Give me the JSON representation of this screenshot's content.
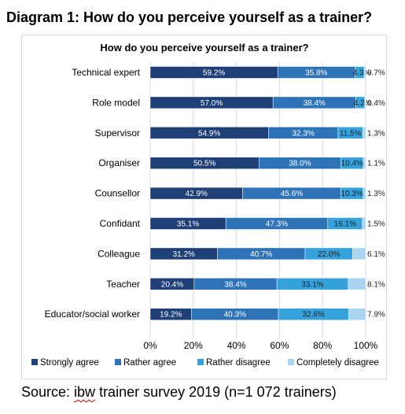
{
  "document_title": "Diagram 1: How do you perceive yourself as a trainer?",
  "source": {
    "prefix": "Source: ",
    "flagged_word": "ibw",
    "rest": " trainer survey 2019 (n=1 072 trainers)"
  },
  "chart_data": {
    "type": "bar",
    "orientation": "horizontal",
    "stacked": true,
    "title": "How do you perceive yourself as a trainer?",
    "categories": [
      "Technical expert",
      "Role model",
      "Supervisor",
      "Organiser",
      "Counsellor",
      "Confidant",
      "Colleague",
      "Teacher",
      "Educator/social worker"
    ],
    "series": [
      {
        "name": "Strongly agree",
        "color": "#1f3f77",
        "label_color": "#ffffff",
        "values": [
          59.2,
          57.0,
          54.9,
          50.5,
          42.9,
          35.1,
          31.2,
          20.4,
          19.2
        ],
        "labels": [
          "59.2%",
          "57.0%",
          "54.9%",
          "50.5%",
          "42.9%",
          "35.1%",
          "31.2%",
          "20.4%",
          "19.2%"
        ]
      },
      {
        "name": "Rather agree",
        "color": "#2e73b8",
        "label_color": "#ffffff",
        "values": [
          35.8,
          38.4,
          32.3,
          38.0,
          45.6,
          47.3,
          40.7,
          38.4,
          40.3
        ],
        "labels": [
          "35.8%",
          "38.4%",
          "32.3%",
          "38.0%",
          "45.6%",
          "47.3%",
          "40.7%",
          "38.4%",
          "40.3%"
        ]
      },
      {
        "name": "Rather disagree",
        "color": "#35a2dc",
        "label_color": "#1f1f1f",
        "values": [
          4.3,
          4.2,
          11.5,
          10.4,
          10.3,
          16.1,
          22.0,
          33.1,
          32.6
        ],
        "labels": [
          "4.3%",
          "4.2%",
          "11.5%",
          "10.4%",
          "10.3%",
          "16.1%",
          "22.0%",
          "33.1%",
          "32.6%"
        ]
      },
      {
        "name": "Completely disagree",
        "color": "#a9d4f2",
        "label_color": "#1f1f1f",
        "values": [
          0.7,
          0.4,
          1.3,
          1.1,
          1.3,
          1.5,
          6.1,
          8.1,
          7.9
        ],
        "labels": [
          "0.7%",
          "0.4%",
          "1.3%",
          "1.1%",
          "1.3%",
          "1.5%",
          "6.1%",
          "8.1%",
          "7.9%"
        ]
      }
    ],
    "xlim": [
      0,
      100
    ],
    "xticks": [
      0,
      20,
      40,
      60,
      80,
      100
    ],
    "xtick_labels": [
      "0%",
      "20%",
      "40%",
      "60%",
      "80%",
      "100%"
    ],
    "grid": true,
    "legend_position": "bottom"
  }
}
